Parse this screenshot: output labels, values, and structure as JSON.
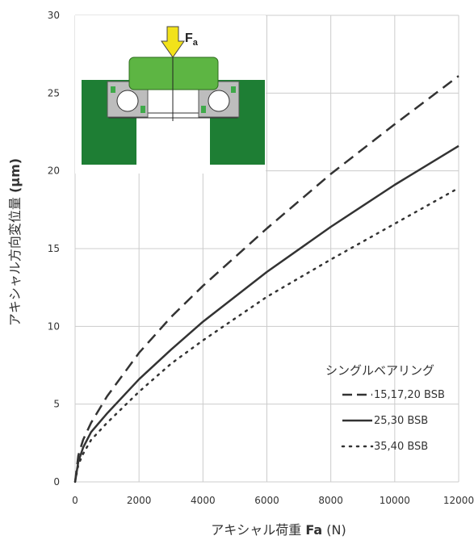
{
  "chart_data": {
    "type": "line",
    "xlabel_prefix": "アキシャル荷重 ",
    "xlabel_bold": "Fa",
    "xlabel_suffix": " (N)",
    "ylabel_prefix": "アキシャル方向変位量 ",
    "ylabel_bold": "(μm)",
    "xlim": [
      0,
      12000
    ],
    "ylim": [
      0,
      30
    ],
    "x_ticks": [
      0,
      2000,
      4000,
      6000,
      8000,
      10000,
      12000
    ],
    "y_ticks": [
      0,
      5,
      10,
      15,
      20,
      25,
      30
    ],
    "grid": true,
    "legend_title": "シングルベアリング",
    "legend_position": "bottom-right",
    "series": [
      {
        "name": "15,17,20 BSB",
        "style": "dashed",
        "color": "#333333",
        "x": [
          0,
          100,
          250,
          500,
          1000,
          2000,
          3000,
          4000,
          6000,
          8000,
          10000,
          12000
        ],
        "y": [
          0,
          1.7,
          2.7,
          3.8,
          5.5,
          8.3,
          10.6,
          12.6,
          16.3,
          19.8,
          23.0,
          26.1
        ]
      },
      {
        "name": "25,30 BSB",
        "style": "solid",
        "color": "#333333",
        "x": [
          0,
          100,
          250,
          500,
          1000,
          2000,
          3000,
          4000,
          6000,
          8000,
          10000,
          12000
        ],
        "y": [
          0,
          1.3,
          2.2,
          3.2,
          4.4,
          6.6,
          8.5,
          10.3,
          13.5,
          16.4,
          19.1,
          21.6
        ]
      },
      {
        "name": "35,40 BSB",
        "style": "dotted",
        "color": "#333333",
        "x": [
          0,
          100,
          250,
          500,
          1000,
          2000,
          3000,
          4000,
          6000,
          8000,
          10000,
          12000
        ],
        "y": [
          0,
          1.1,
          1.8,
          2.7,
          3.8,
          5.8,
          7.6,
          9.1,
          11.9,
          14.3,
          16.6,
          18.9
        ]
      }
    ]
  },
  "illustration": {
    "force_label": "F",
    "force_subscript": "a",
    "housing_color": "#1e7e34",
    "shaft_color": "#5db543",
    "arrow_color": "#f2e21a",
    "bearing_grey": "#bdbdbd",
    "seal_green": "#3fa94a"
  }
}
